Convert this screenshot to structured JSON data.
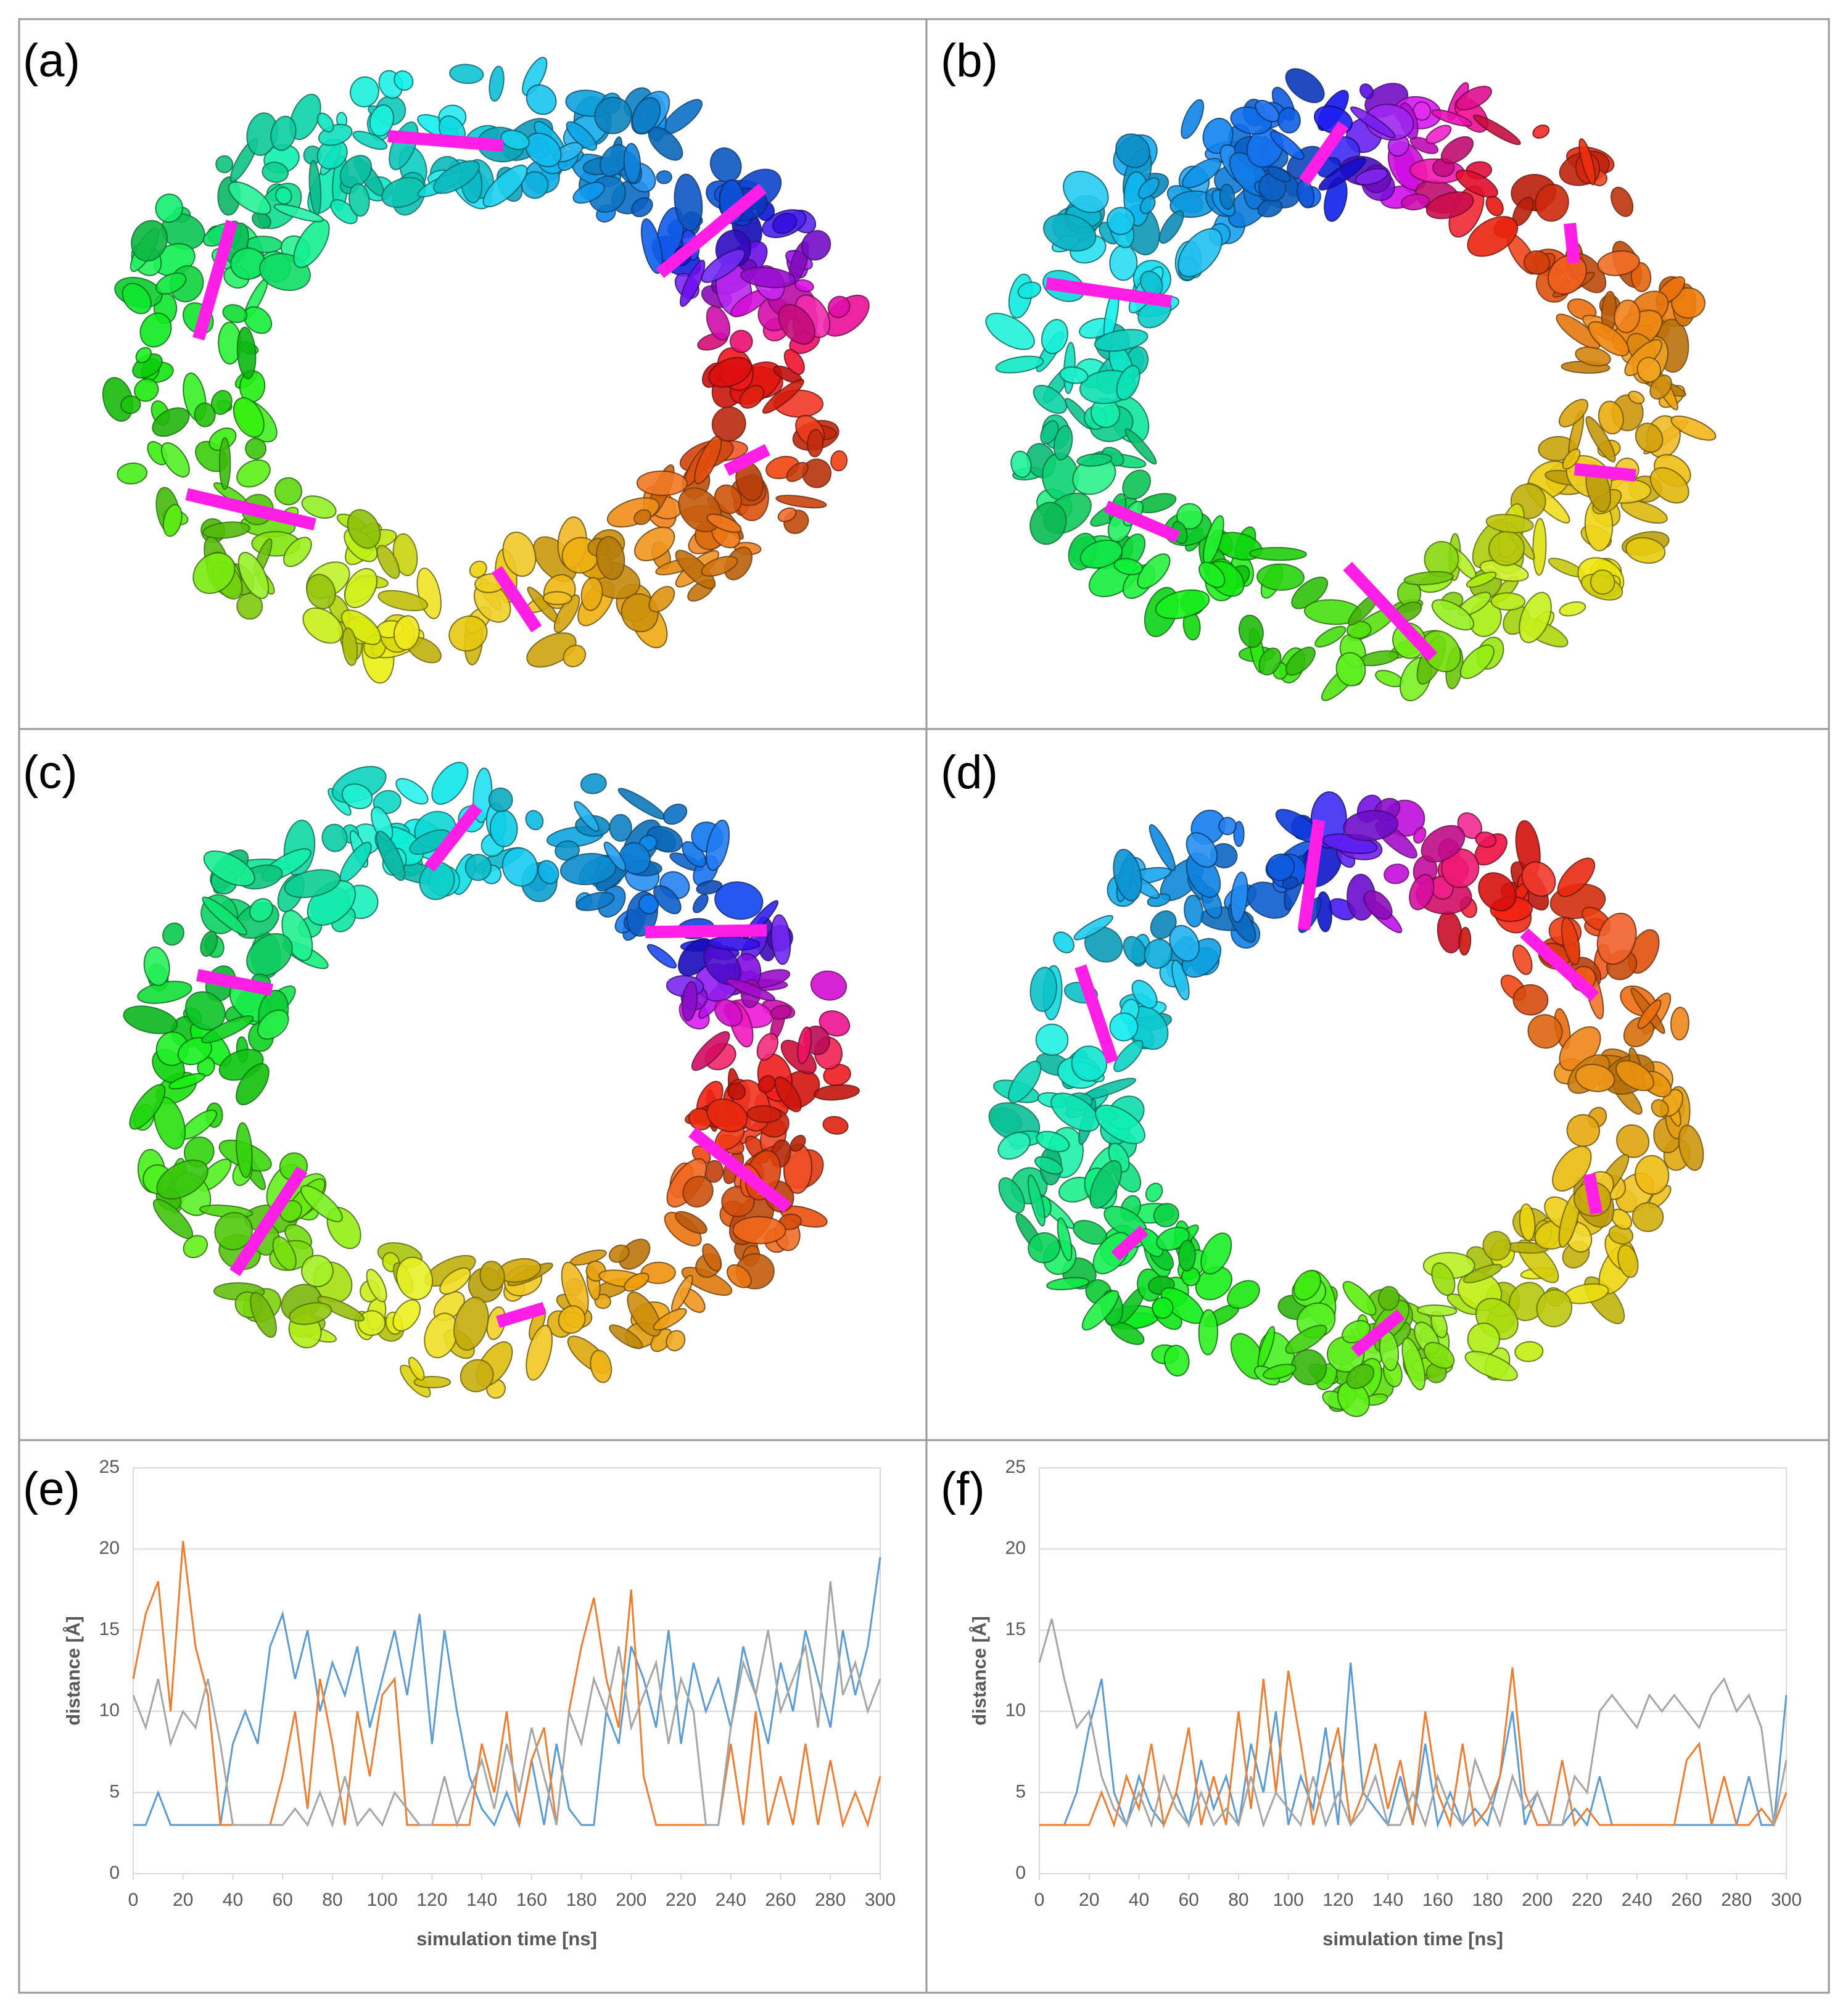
{
  "panels": [
    {
      "label": "(a)"
    },
    {
      "label": "(b)"
    },
    {
      "label": "(c)"
    },
    {
      "label": "(d)"
    }
  ],
  "chart_data": [
    {
      "type": "line",
      "label": "(e)",
      "xlabel": "simulation time [ns]",
      "ylabel": "distance [Å]",
      "grid": true,
      "x": [
        0,
        5,
        10,
        15,
        20,
        25,
        30,
        35,
        40,
        45,
        50,
        55,
        60,
        65,
        70,
        75,
        80,
        85,
        90,
        95,
        100,
        105,
        110,
        115,
        120,
        125,
        130,
        135,
        140,
        145,
        150,
        155,
        160,
        165,
        170,
        175,
        180,
        185,
        190,
        195,
        200,
        205,
        210,
        215,
        220,
        225,
        230,
        235,
        240,
        245,
        250,
        255,
        260,
        265,
        270,
        275,
        280,
        285,
        290,
        295,
        300
      ],
      "xlim": [
        0,
        300
      ],
      "xticks": [
        0,
        20,
        40,
        60,
        80,
        100,
        120,
        140,
        160,
        180,
        200,
        220,
        240,
        260,
        280,
        300
      ],
      "ylim": [
        0,
        25
      ],
      "yticks": [
        0,
        5,
        10,
        15,
        20,
        25
      ],
      "series": [
        {
          "color": "#5b9bd5",
          "values": [
            3,
            3,
            5,
            3,
            3,
            3,
            3,
            3,
            8,
            10,
            8,
            14,
            16,
            12,
            15,
            10,
            13,
            11,
            14,
            9,
            12,
            15,
            11,
            16,
            8,
            15,
            10,
            6,
            4,
            3,
            5,
            3,
            7,
            3,
            8,
            4,
            3,
            3,
            10,
            8,
            14,
            12,
            9,
            15,
            8,
            13,
            10,
            12,
            9,
            14,
            11,
            8,
            13,
            10,
            15,
            12,
            9,
            15,
            11,
            14,
            19.5
          ]
        },
        {
          "color": "#ed7d31",
          "values": [
            12,
            16,
            18,
            10,
            20.5,
            14,
            11,
            3,
            3,
            3,
            3,
            3,
            6,
            10,
            4,
            12,
            8,
            3,
            10,
            6,
            11,
            12,
            3,
            3,
            3,
            3,
            3,
            3,
            8,
            5,
            10,
            3,
            7,
            9,
            3,
            10,
            14,
            17,
            12,
            9,
            17.5,
            6,
            3,
            3,
            3,
            3,
            3,
            3,
            8,
            3,
            10,
            3,
            6,
            3,
            8,
            3,
            7,
            3,
            5,
            3,
            6
          ]
        },
        {
          "color": "#a5a5a5",
          "values": [
            11,
            9,
            12,
            8,
            10,
            9,
            12,
            8,
            3,
            3,
            3,
            3,
            3,
            4,
            3,
            5,
            3,
            6,
            3,
            4,
            3,
            5,
            4,
            3,
            3,
            6,
            3,
            5,
            7,
            4,
            8,
            5,
            9,
            6,
            3,
            10,
            8,
            12,
            10,
            14,
            9,
            11,
            13,
            8,
            12,
            10,
            3,
            3,
            9,
            13,
            11,
            15,
            10,
            12,
            14,
            9,
            18,
            11,
            13,
            10,
            12
          ]
        }
      ]
    },
    {
      "type": "line",
      "label": "(f)",
      "xlabel": "simulation time [ns]",
      "ylabel": "distance [Å]",
      "grid": true,
      "x": [
        0,
        5,
        10,
        15,
        20,
        25,
        30,
        35,
        40,
        45,
        50,
        55,
        60,
        65,
        70,
        75,
        80,
        85,
        90,
        95,
        100,
        105,
        110,
        115,
        120,
        125,
        130,
        135,
        140,
        145,
        150,
        155,
        160,
        165,
        170,
        175,
        180,
        185,
        190,
        195,
        200,
        205,
        210,
        215,
        220,
        225,
        230,
        235,
        240,
        245,
        250,
        255,
        260,
        265,
        270,
        275,
        280,
        285,
        290,
        295,
        300
      ],
      "xlim": [
        0,
        300
      ],
      "xticks": [
        0,
        20,
        40,
        60,
        80,
        100,
        120,
        140,
        160,
        180,
        200,
        220,
        240,
        260,
        280,
        300
      ],
      "ylim": [
        0,
        25
      ],
      "yticks": [
        0,
        5,
        10,
        15,
        20,
        25
      ],
      "series": [
        {
          "color": "#5b9bd5",
          "values": [
            3,
            3,
            3,
            5,
            9,
            12,
            5,
            3,
            6,
            4,
            3,
            5,
            3,
            7,
            4,
            6,
            3,
            8,
            5,
            10,
            3,
            6,
            4,
            9,
            3,
            13,
            5,
            4,
            3,
            6,
            3,
            8,
            3,
            5,
            3,
            4,
            3,
            6,
            10,
            3,
            5,
            3,
            3,
            4,
            3,
            6,
            3,
            3,
            3,
            3,
            3,
            3,
            3,
            3,
            3,
            3,
            3,
            6,
            3,
            3,
            11
          ]
        },
        {
          "color": "#ed7d31",
          "values": [
            3,
            3,
            3,
            3,
            3,
            5,
            3,
            6,
            4,
            8,
            3,
            5,
            9,
            3,
            6,
            3,
            10,
            4,
            12,
            5,
            12.5,
            8,
            3,
            6,
            9,
            3,
            5,
            8,
            4,
            7,
            3,
            10,
            5,
            3,
            8,
            3,
            4,
            6,
            12.7,
            5,
            3,
            3,
            7,
            3,
            4,
            3,
            3,
            3,
            3,
            3,
            3,
            3,
            7,
            8,
            3,
            6,
            3,
            3,
            4,
            3,
            5
          ]
        },
        {
          "color": "#a5a5a5",
          "values": [
            13,
            15.7,
            12,
            9,
            10,
            6,
            4,
            3,
            5,
            3,
            6,
            4,
            3,
            5,
            3,
            4,
            3,
            6,
            3,
            5,
            4,
            3,
            6,
            3,
            5,
            3,
            4,
            6,
            3,
            3,
            5,
            3,
            6,
            4,
            3,
            7,
            5,
            3,
            6,
            4,
            5,
            3,
            3,
            6,
            5,
            10,
            11,
            10,
            9,
            11,
            10,
            11,
            10,
            9,
            11,
            12,
            10,
            11,
            9,
            3,
            7
          ]
        }
      ]
    }
  ]
}
